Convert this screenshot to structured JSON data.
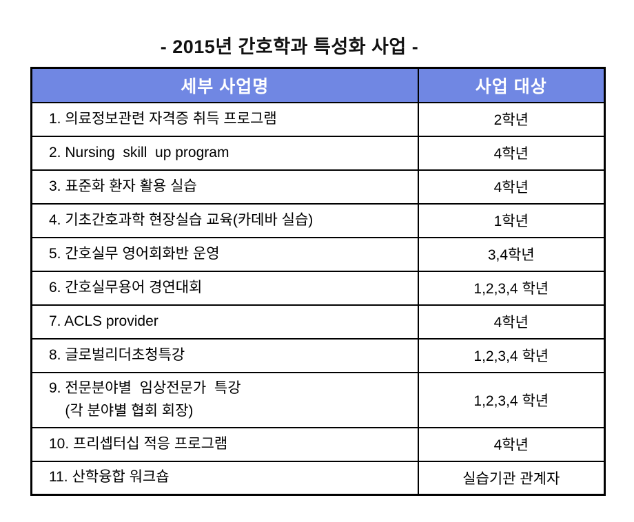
{
  "title": "- 2015년 간호학과 특성화 사업 -",
  "colors": {
    "header_bg": "#7087E3",
    "header_text": "#FFFFFF",
    "border": "#000000",
    "body_text": "#000000",
    "page_bg": "#FFFFFF"
  },
  "table": {
    "headers": [
      "세부 사업명",
      "사업 대상"
    ],
    "rows": [
      {
        "name": "1. 의료정보관련 자격증 취득 프로그램",
        "target": "2학년"
      },
      {
        "name": "2. Nursing  skill  up program",
        "target": "4학년"
      },
      {
        "name": "3. 표준화 환자 활용 실습",
        "target": "4학년"
      },
      {
        "name": "4. 기초간호과학 현장실습 교육(카데바 실습)",
        "target": "1학년"
      },
      {
        "name": "5. 간호실무 영어회화반 운영",
        "target": "3,4학년"
      },
      {
        "name": "6. 간호실무용어 경연대회",
        "target": "1,2,3,4 학년"
      },
      {
        "name": "7. ACLS provider",
        "target": "4학년"
      },
      {
        "name": "8. 글로벌리더초청특강",
        "target": "1,2,3,4 학년"
      },
      {
        "name": "9. 전문분야별  임상전문가  특강\n    (각 분야별 협회 회장)",
        "target": "1,2,3,4 학년"
      },
      {
        "name": "10. 프리셉터십 적응 프로그램",
        "target": "4학년"
      },
      {
        "name": "11. 산학융합 워크숍",
        "target": "실습기관 관계자"
      }
    ]
  }
}
